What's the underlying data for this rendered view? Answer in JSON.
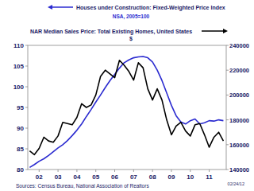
{
  "chart_data": {
    "type": "line",
    "annotations": [
      "NSA, 2005=100",
      "$",
      "Sources:  Census Bureau, National Association of Realtors",
      "02/24/12"
    ],
    "x": [
      2001.5,
      2001.75,
      2002.0,
      2002.25,
      2002.5,
      2002.75,
      2003.0,
      2003.25,
      2003.5,
      2003.75,
      2004.0,
      2004.25,
      2004.5,
      2004.75,
      2005.0,
      2005.25,
      2005.5,
      2005.75,
      2006.0,
      2006.25,
      2006.5,
      2006.75,
      2007.0,
      2007.25,
      2007.5,
      2007.75,
      2008.0,
      2008.25,
      2008.5,
      2008.75,
      2009.0,
      2009.25,
      2009.5,
      2009.75,
      2010.0,
      2010.25,
      2010.5,
      2010.75,
      2011.0,
      2011.25,
      2011.5,
      2011.75
    ],
    "series": [
      {
        "name": "Houses under Construction: Fixed-Weighted Price Index",
        "color": "#2b2bd0",
        "values": [
          80.5,
          81.2,
          82,
          82.6,
          83.4,
          84.3,
          85.2,
          86,
          87,
          88.2,
          89.5,
          91,
          92.8,
          94.5,
          96.3,
          98,
          99.8,
          101.5,
          103,
          104.5,
          105.8,
          106.5,
          107,
          107.2,
          107.3,
          107,
          106,
          104,
          101.5,
          98.5,
          95.5,
          93,
          91.5,
          91,
          91.8,
          92.2,
          91,
          91.3,
          91.8,
          91.7,
          92,
          91.8
        ]
      },
      {
        "name": "NAR Median Sales Price: Total Existing Homes, United States",
        "color": "#000000",
        "axis": "y2",
        "values": [
          155000,
          152000,
          157000,
          166000,
          163000,
          162000,
          167000,
          178000,
          177000,
          176000,
          182000,
          193000,
          190000,
          192000,
          200000,
          215000,
          220000,
          217000,
          214000,
          228000,
          224000,
          219000,
          212000,
          226000,
          222000,
          205000,
          196000,
          205000,
          196000,
          180000,
          168000,
          175000,
          178000,
          171000,
          167000,
          176000,
          177000,
          168000,
          158000,
          166000,
          170000,
          163000
        ]
      }
    ],
    "xlim": [
      2001.4,
      2011.9
    ],
    "xticks": [
      {
        "value": 2002,
        "label": "02"
      },
      {
        "value": 2003,
        "label": "03"
      },
      {
        "value": 2004,
        "label": "04"
      },
      {
        "value": 2005,
        "label": "05"
      },
      {
        "value": 2006,
        "label": "06"
      },
      {
        "value": 2007,
        "label": "07"
      },
      {
        "value": 2008,
        "label": "08"
      },
      {
        "value": 2009,
        "label": "09"
      },
      {
        "value": 2010,
        "label": "10"
      },
      {
        "value": 2011,
        "label": "11"
      }
    ],
    "ylim": [
      80,
      110
    ],
    "yticks": [
      80,
      85,
      90,
      95,
      100,
      105,
      110
    ],
    "y2lim": [
      140000,
      240000
    ],
    "y2ticks": [
      140000,
      160000,
      180000,
      200000,
      220000,
      240000
    ],
    "grid": false
  }
}
